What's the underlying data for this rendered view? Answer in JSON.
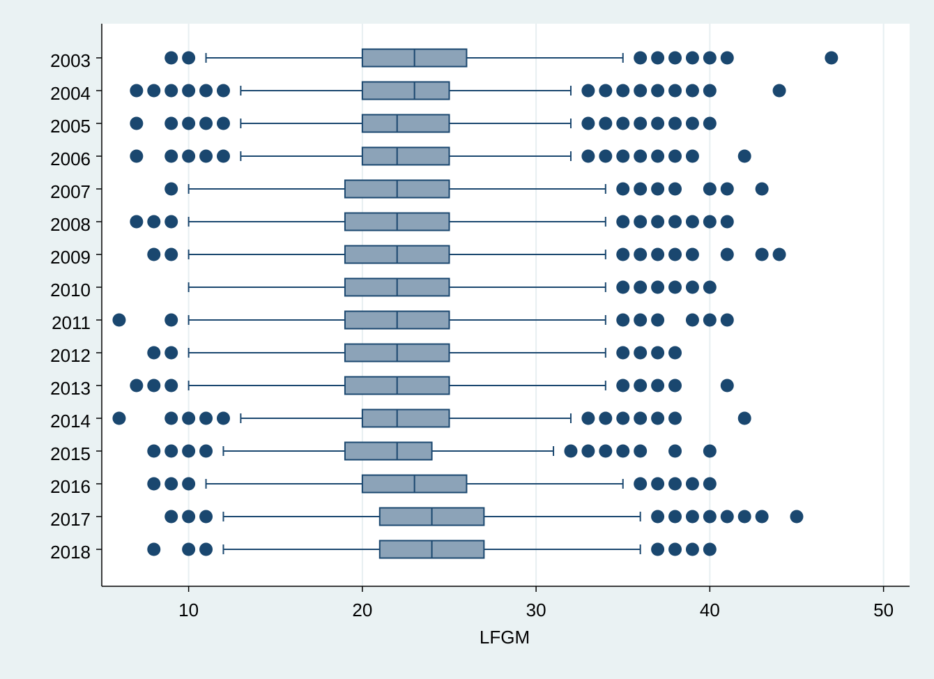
{
  "chart_data": {
    "type": "boxplot",
    "orientation": "horizontal",
    "xlabel": "LFGM",
    "xlim": [
      5,
      51.5
    ],
    "xticks": [
      10,
      20,
      30,
      40,
      50
    ],
    "grid": true,
    "legend": "none",
    "colors": {
      "background": "#eaf2f3",
      "plot_area": "#ffffff",
      "box_fill": "#8ca3b8",
      "box_edge": "#1a476f",
      "outlier": "#1a476f",
      "grid": "#e7eff1"
    },
    "categories": [
      "2003",
      "2004",
      "2005",
      "2006",
      "2007",
      "2008",
      "2009",
      "2010",
      "2011",
      "2012",
      "2013",
      "2014",
      "2015",
      "2016",
      "2017",
      "2018"
    ],
    "boxes": [
      {
        "label": "2003",
        "whisker_low": 11,
        "q1": 20,
        "median": 23,
        "q3": 26,
        "whisker_high": 35,
        "outliers": [
          9,
          10,
          36,
          37,
          38,
          39,
          40,
          41,
          47
        ]
      },
      {
        "label": "2004",
        "whisker_low": 13,
        "q1": 20,
        "median": 23,
        "q3": 25,
        "whisker_high": 32,
        "outliers": [
          7,
          8,
          9,
          10,
          11,
          12,
          33,
          34,
          35,
          36,
          37,
          38,
          39,
          40,
          44
        ]
      },
      {
        "label": "2005",
        "whisker_low": 13,
        "q1": 20,
        "median": 22,
        "q3": 25,
        "whisker_high": 32,
        "outliers": [
          7,
          9,
          10,
          11,
          12,
          33,
          34,
          35,
          36,
          37,
          38,
          39,
          40
        ]
      },
      {
        "label": "2006",
        "whisker_low": 13,
        "q1": 20,
        "median": 22,
        "q3": 25,
        "whisker_high": 32,
        "outliers": [
          7,
          9,
          10,
          11,
          12,
          33,
          34,
          35,
          36,
          37,
          38,
          39,
          42
        ]
      },
      {
        "label": "2007",
        "whisker_low": 10,
        "q1": 19,
        "median": 22,
        "q3": 25,
        "whisker_high": 34,
        "outliers": [
          9,
          35,
          36,
          37,
          38,
          40,
          41,
          43
        ]
      },
      {
        "label": "2008",
        "whisker_low": 10,
        "q1": 19,
        "median": 22,
        "q3": 25,
        "whisker_high": 34,
        "outliers": [
          7,
          8,
          9,
          35,
          36,
          37,
          38,
          39,
          40,
          41
        ]
      },
      {
        "label": "2009",
        "whisker_low": 10,
        "q1": 19,
        "median": 22,
        "q3": 25,
        "whisker_high": 34,
        "outliers": [
          8,
          9,
          35,
          36,
          37,
          38,
          39,
          41,
          43,
          44
        ]
      },
      {
        "label": "2010",
        "whisker_low": 10,
        "q1": 19,
        "median": 22,
        "q3": 25,
        "whisker_high": 34,
        "outliers": [
          35,
          36,
          37,
          38,
          39,
          40
        ]
      },
      {
        "label": "2011",
        "whisker_low": 10,
        "q1": 19,
        "median": 22,
        "q3": 25,
        "whisker_high": 34,
        "outliers": [
          6,
          9,
          35,
          36,
          37,
          39,
          40,
          41
        ]
      },
      {
        "label": "2012",
        "whisker_low": 10,
        "q1": 19,
        "median": 22,
        "q3": 25,
        "whisker_high": 34,
        "outliers": [
          8,
          9,
          35,
          36,
          37,
          38
        ]
      },
      {
        "label": "2013",
        "whisker_low": 10,
        "q1": 19,
        "median": 22,
        "q3": 25,
        "whisker_high": 34,
        "outliers": [
          7,
          8,
          9,
          35,
          36,
          37,
          38,
          41
        ]
      },
      {
        "label": "2014",
        "whisker_low": 13,
        "q1": 20,
        "median": 22,
        "q3": 25,
        "whisker_high": 32,
        "outliers": [
          6,
          9,
          10,
          11,
          12,
          33,
          34,
          35,
          36,
          37,
          38,
          42
        ]
      },
      {
        "label": "2015",
        "whisker_low": 12,
        "q1": 19,
        "median": 22,
        "q3": 24,
        "whisker_high": 31,
        "outliers": [
          8,
          9,
          10,
          11,
          32,
          33,
          34,
          35,
          36,
          38,
          40
        ]
      },
      {
        "label": "2016",
        "whisker_low": 11,
        "q1": 20,
        "median": 23,
        "q3": 26,
        "whisker_high": 35,
        "outliers": [
          8,
          9,
          10,
          36,
          37,
          38,
          39,
          40
        ]
      },
      {
        "label": "2017",
        "whisker_low": 12,
        "q1": 21,
        "median": 24,
        "q3": 27,
        "whisker_high": 36,
        "outliers": [
          9,
          10,
          11,
          37,
          38,
          39,
          40,
          41,
          42,
          43,
          45
        ]
      },
      {
        "label": "2018",
        "whisker_low": 12,
        "q1": 21,
        "median": 24,
        "q3": 27,
        "whisker_high": 36,
        "outliers": [
          8,
          10,
          11,
          37,
          38,
          39,
          40
        ]
      }
    ]
  }
}
